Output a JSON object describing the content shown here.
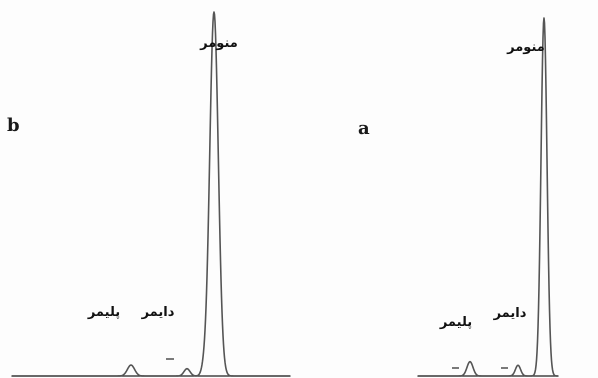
{
  "chart_data": [
    {
      "type": "line",
      "panel": "b",
      "series": [
        {
          "peaks": [
            {
              "label": "پلیمر",
              "relative_height": 0.03
            },
            {
              "label": "دایمر",
              "relative_height": 0.02
            },
            {
              "label": "منومر",
              "relative_height": 1.0
            }
          ]
        }
      ]
    },
    {
      "type": "line",
      "panel": "a",
      "series": [
        {
          "peaks": [
            {
              "label": "پلیمر",
              "relative_height": 0.04
            },
            {
              "label": "دایمر",
              "relative_height": 0.03
            },
            {
              "label": "منومر",
              "relative_height": 1.0
            }
          ]
        }
      ]
    }
  ]
}
